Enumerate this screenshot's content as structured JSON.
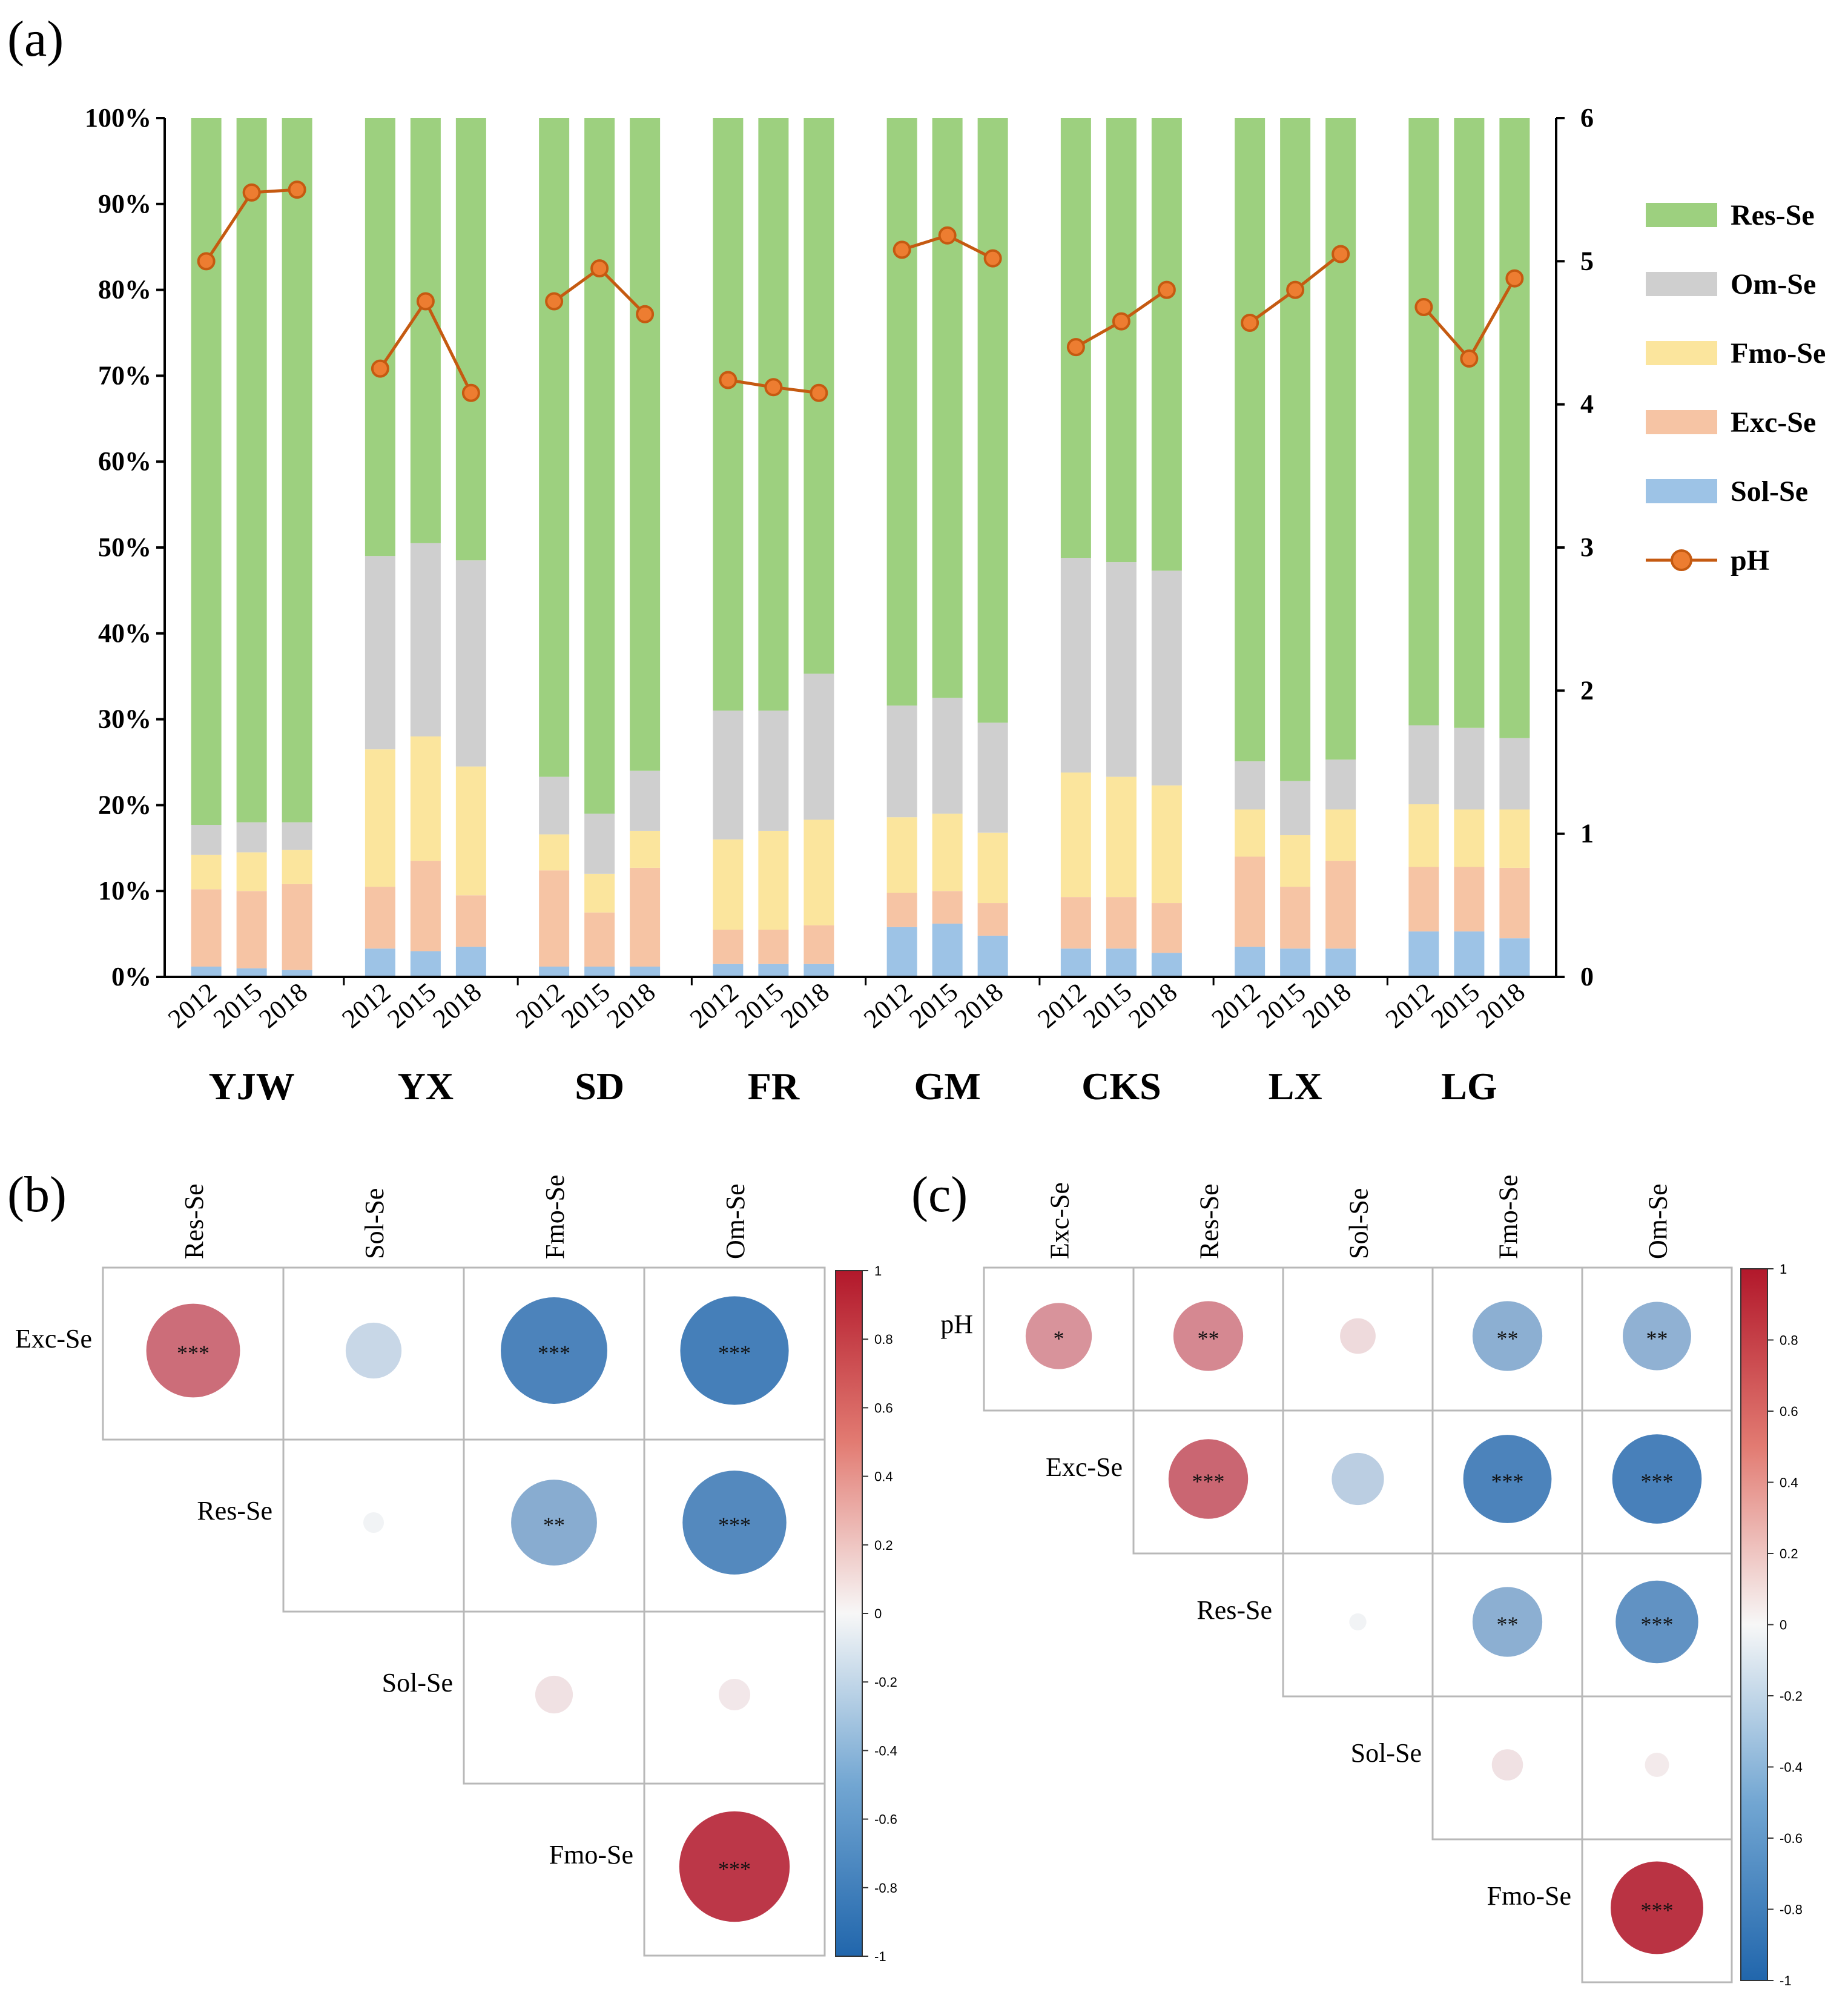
{
  "colors": {
    "Res-Se": "#9dd07f",
    "Om-Se": "#cfcfcf",
    "Fmo-Se": "#fbe59d",
    "Exc-Se": "#f6c4a4",
    "Sol-Se": "#9dc3e6",
    "pH_line": "#c55a11",
    "pH_marker": "#ed7d31",
    "positive": "#b2182b",
    "negative": "#2166ac"
  },
  "panel_a": {
    "label": "(a)",
    "left_axis_ticks": [
      "0%",
      "10%",
      "20%",
      "30%",
      "40%",
      "50%",
      "60%",
      "70%",
      "80%",
      "90%",
      "100%"
    ],
    "right_axis_ticks": [
      "0",
      "1",
      "2",
      "3",
      "4",
      "5",
      "6"
    ],
    "legend": [
      {
        "key": "Res-Se",
        "label": "Res-Se",
        "kind": "bar"
      },
      {
        "key": "Om-Se",
        "label": "Om-Se",
        "kind": "bar"
      },
      {
        "key": "Fmo-Se",
        "label": "Fmo-Se",
        "kind": "bar"
      },
      {
        "key": "Exc-Se",
        "label": "Exc-Se",
        "kind": "bar"
      },
      {
        "key": "Sol-Se",
        "label": "Sol-Se",
        "kind": "bar"
      },
      {
        "key": "pH",
        "label": "pH",
        "kind": "line"
      }
    ]
  },
  "panel_b": {
    "label": "(b)",
    "colorbar_ticks": [
      "1",
      "0.8",
      "0.6",
      "0.4",
      "0.2",
      "0",
      "-0.2",
      "-0.4",
      "-0.6",
      "-0.8",
      "-1"
    ]
  },
  "panel_c": {
    "label": "(c)",
    "colorbar_ticks": [
      "1",
      "0.8",
      "0.6",
      "0.4",
      "0.2",
      "0",
      "-0.2",
      "-0.4",
      "-0.6",
      "-0.8",
      "-1"
    ]
  },
  "chart_data": [
    {
      "type": "bar",
      "stacked": true,
      "secondary_line": "pH",
      "sites": [
        "YJW",
        "YX",
        "SD",
        "FR",
        "GM",
        "CKS",
        "LX",
        "LG"
      ],
      "years": [
        "2012",
        "2015",
        "2018"
      ],
      "ylim": [
        0,
        100
      ],
      "ylim_right": [
        0,
        6
      ],
      "stack_order": [
        "Sol-Se",
        "Exc-Se",
        "Fmo-Se",
        "Om-Se",
        "Res-Se"
      ],
      "series": {
        "Sol-Se": [
          [
            1.2,
            1.0,
            0.8
          ],
          [
            3.3,
            3.0,
            3.5
          ],
          [
            1.2,
            1.2,
            1.2
          ],
          [
            1.5,
            1.5,
            1.5
          ],
          [
            5.8,
            6.2,
            4.8
          ],
          [
            3.3,
            3.3,
            2.8
          ],
          [
            3.5,
            3.3,
            3.3
          ],
          [
            5.3,
            5.3,
            4.5
          ]
        ],
        "Exc-Se": [
          [
            9.0,
            9.0,
            10.0
          ],
          [
            7.2,
            10.5,
            6.0
          ],
          [
            11.2,
            6.3,
            11.5
          ],
          [
            4.0,
            4.0,
            4.5
          ],
          [
            4.0,
            3.8,
            3.8
          ],
          [
            6.0,
            6.0,
            5.8
          ],
          [
            10.5,
            7.2,
            10.2
          ],
          [
            7.5,
            7.5,
            8.2
          ]
        ],
        "Fmo-Se": [
          [
            4.0,
            4.5,
            4.0
          ],
          [
            16.0,
            14.5,
            15.0
          ],
          [
            4.2,
            4.5,
            4.3
          ],
          [
            10.5,
            11.5,
            12.3
          ],
          [
            8.8,
            9.0,
            8.2
          ],
          [
            14.5,
            14.0,
            13.7
          ],
          [
            5.5,
            6.0,
            6.0
          ],
          [
            7.3,
            6.7,
            6.8
          ]
        ],
        "Om-Se": [
          [
            3.5,
            3.5,
            3.2
          ],
          [
            22.5,
            22.5,
            24.0
          ],
          [
            6.7,
            7.0,
            7.0
          ],
          [
            15.0,
            14.0,
            17.0
          ],
          [
            13.0,
            13.5,
            12.8
          ],
          [
            25.0,
            25.0,
            25.0
          ],
          [
            5.6,
            6.3,
            5.8
          ],
          [
            9.2,
            9.5,
            8.3
          ]
        ],
        "Res-Se": [
          [
            82.3,
            82.0,
            82.0
          ],
          [
            51.0,
            49.5,
            51.5
          ],
          [
            76.7,
            81.0,
            76.0
          ],
          [
            69.0,
            69.0,
            64.7
          ],
          [
            68.4,
            67.5,
            70.4
          ],
          [
            51.2,
            51.7,
            52.7
          ],
          [
            74.9,
            77.2,
            74.7
          ],
          [
            70.7,
            71.0,
            72.2
          ]
        ]
      },
      "pH": [
        [
          5.0,
          5.48,
          5.5
        ],
        [
          4.25,
          4.72,
          4.08
        ],
        [
          4.72,
          4.95,
          4.63
        ],
        [
          4.17,
          4.12,
          4.08
        ],
        [
          5.08,
          5.18,
          5.02
        ],
        [
          4.4,
          4.58,
          4.8
        ],
        [
          4.57,
          4.8,
          5.05
        ],
        [
          4.68,
          4.32,
          4.88
        ]
      ]
    },
    {
      "type": "heatmap",
      "subtype": "correlation",
      "title": "(b)",
      "rows": [
        "Exc-Se",
        "Res-Se",
        "Sol-Se",
        "Fmo-Se"
      ],
      "cols": [
        "Res-Se",
        "Sol-Se",
        "Fmo-Se",
        "Om-Se"
      ],
      "cells": [
        {
          "row": "Exc-Se",
          "col": "Res-Se",
          "r": 0.62,
          "sig": "***"
        },
        {
          "row": "Exc-Se",
          "col": "Sol-Se",
          "r": -0.22,
          "sig": ""
        },
        {
          "row": "Exc-Se",
          "col": "Fmo-Se",
          "r": -0.8,
          "sig": "***"
        },
        {
          "row": "Exc-Se",
          "col": "Om-Se",
          "r": -0.83,
          "sig": "***"
        },
        {
          "row": "Res-Se",
          "col": "Sol-Se",
          "r": -0.03,
          "sig": ""
        },
        {
          "row": "Res-Se",
          "col": "Fmo-Se",
          "r": -0.52,
          "sig": "**"
        },
        {
          "row": "Res-Se",
          "col": "Om-Se",
          "r": -0.76,
          "sig": "***"
        },
        {
          "row": "Sol-Se",
          "col": "Fmo-Se",
          "r": 0.1,
          "sig": ""
        },
        {
          "row": "Sol-Se",
          "col": "Om-Se",
          "r": 0.07,
          "sig": ""
        },
        {
          "row": "Fmo-Se",
          "col": "Om-Se",
          "r": 0.86,
          "sig": "***"
        }
      ],
      "colorbar_range": [
        -1,
        1
      ]
    },
    {
      "type": "heatmap",
      "subtype": "correlation",
      "title": "(c)",
      "rows": [
        "pH",
        "Exc-Se",
        "Res-Se",
        "Sol-Se",
        "Fmo-Se"
      ],
      "cols": [
        "Exc-Se",
        "Res-Se",
        "Sol-Se",
        "Fmo-Se",
        "Om-Se"
      ],
      "cells": [
        {
          "row": "pH",
          "col": "Exc-Se",
          "r": 0.45,
          "sig": "*"
        },
        {
          "row": "pH",
          "col": "Res-Se",
          "r": 0.5,
          "sig": "**"
        },
        {
          "row": "pH",
          "col": "Sol-Se",
          "r": 0.13,
          "sig": ""
        },
        {
          "row": "pH",
          "col": "Fmo-Se",
          "r": -0.5,
          "sig": "**"
        },
        {
          "row": "pH",
          "col": "Om-Se",
          "r": -0.48,
          "sig": "**"
        },
        {
          "row": "Exc-Se",
          "col": "Res-Se",
          "r": 0.65,
          "sig": "***"
        },
        {
          "row": "Exc-Se",
          "col": "Sol-Se",
          "r": -0.28,
          "sig": ""
        },
        {
          "row": "Exc-Se",
          "col": "Fmo-Se",
          "r": -0.8,
          "sig": "***"
        },
        {
          "row": "Exc-Se",
          "col": "Om-Se",
          "r": -0.82,
          "sig": "***"
        },
        {
          "row": "Res-Se",
          "col": "Sol-Se",
          "r": -0.03,
          "sig": ""
        },
        {
          "row": "Res-Se",
          "col": "Fmo-Se",
          "r": -0.5,
          "sig": "**"
        },
        {
          "row": "Res-Se",
          "col": "Om-Se",
          "r": -0.7,
          "sig": "***"
        },
        {
          "row": "Sol-Se",
          "col": "Fmo-Se",
          "r": 0.1,
          "sig": ""
        },
        {
          "row": "Sol-Se",
          "col": "Om-Se",
          "r": 0.06,
          "sig": ""
        },
        {
          "row": "Fmo-Se",
          "col": "Om-Se",
          "r": 0.88,
          "sig": "***"
        }
      ],
      "colorbar_range": [
        -1,
        1
      ]
    }
  ]
}
